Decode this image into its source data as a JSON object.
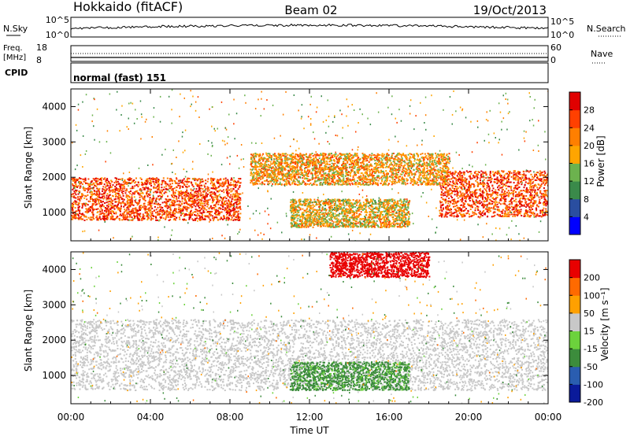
{
  "header": {
    "station": "Hokkaido (fitACF)",
    "beam": "Beam 02",
    "date": "19/Oct/2013"
  },
  "nsky_panel": {
    "label": "N.Sky",
    "right_label": "N.Search",
    "ticks_left": [
      "10^5",
      "10^0"
    ],
    "ticks_right": [
      "10^5",
      "10^0"
    ]
  },
  "freq_panel": {
    "label_line1": "Freq.",
    "label_line2": "[MHz]",
    "ticks_left": [
      "18",
      "8"
    ],
    "ticks_right": [
      "60",
      "0"
    ],
    "right_label": "Nave"
  },
  "cpid_panel": {
    "label": "CPID",
    "value": "normal (fast) 151"
  },
  "x_axis": {
    "ticks": [
      "00:00",
      "04:00",
      "08:00",
      "12:00",
      "16:00",
      "20:00",
      "00:00"
    ],
    "title": "Time UT"
  },
  "power_panel": {
    "ylabel": "Slant Range [km]",
    "yticks": [
      "4000",
      "3000",
      "2000",
      "1000"
    ],
    "colorbar_label": "Power [dB]",
    "colorbar_ticks": [
      "28",
      "24",
      "20",
      "16",
      "12",
      "8",
      "4"
    ]
  },
  "velocity_panel": {
    "ylabel": "Slant Range [km]",
    "yticks": [
      "4000",
      "3000",
      "2000",
      "1000"
    ],
    "colorbar_label": "Velocity [m s⁻¹]",
    "colorbar_ticks": [
      "200",
      "100",
      "50",
      "15",
      "-15",
      "-50",
      "-100",
      "-200"
    ]
  },
  "colors": {
    "power": [
      "#0000ff",
      "#2a4ea0",
      "#3a8a4a",
      "#6cb24e",
      "#ffa500",
      "#ff7f00",
      "#ff4000",
      "#e00000"
    ],
    "velocity": [
      "#0a1a9a",
      "#2a5db0",
      "#3c8c3c",
      "#6cd23c",
      "#c8c8c8",
      "#ffa000",
      "#ff6a00",
      "#e80000"
    ]
  },
  "chart_data": [
    {
      "type": "heatmap",
      "title": "Beam 02",
      "xlabel": "Time UT",
      "ylabel": "Slant Range [km]",
      "xlim": [
        0,
        24
      ],
      "ylim": [
        200,
        4500
      ],
      "colorbar": {
        "label": "Power [dB]",
        "ticks": [
          28,
          24,
          20,
          16,
          12,
          8,
          4
        ],
        "range": [
          0,
          30
        ]
      },
      "features": [
        {
          "name": "near-range echo band",
          "time": [
            0,
            8.5
          ],
          "range": [
            800,
            2000
          ],
          "power_db": 26
        },
        {
          "name": "near-range echo band",
          "time": [
            18.5,
            24
          ],
          "range": [
            900,
            2200
          ],
          "power_db": 26
        },
        {
          "name": "ionospheric arc",
          "time": [
            9,
            19
          ],
          "range": [
            1800,
            2700
          ],
          "power_db": 20
        },
        {
          "name": "lower arc",
          "time": [
            11,
            17
          ],
          "range": [
            600,
            1400
          ],
          "power_db": 18
        }
      ]
    },
    {
      "type": "heatmap",
      "title": "",
      "xlabel": "Time UT",
      "ylabel": "Slant Range [km]",
      "xlim": [
        0,
        24
      ],
      "ylim": [
        200,
        4500
      ],
      "colorbar": {
        "label": "Velocity [m s⁻¹]",
        "ticks": [
          200,
          100,
          50,
          15,
          -15,
          -50,
          -100,
          -200
        ],
        "range": [
          -250,
          250
        ]
      },
      "features": [
        {
          "name": "ground scatter",
          "time": [
            0,
            24
          ],
          "range": [
            600,
            2600
          ],
          "velocity": 0
        },
        {
          "name": "lower arc",
          "time": [
            11,
            17
          ],
          "range": [
            600,
            1400
          ],
          "velocity": 40
        },
        {
          "name": "far range echoes",
          "time": [
            13,
            18
          ],
          "range": [
            3800,
            4500
          ],
          "velocity": -200
        }
      ]
    }
  ]
}
